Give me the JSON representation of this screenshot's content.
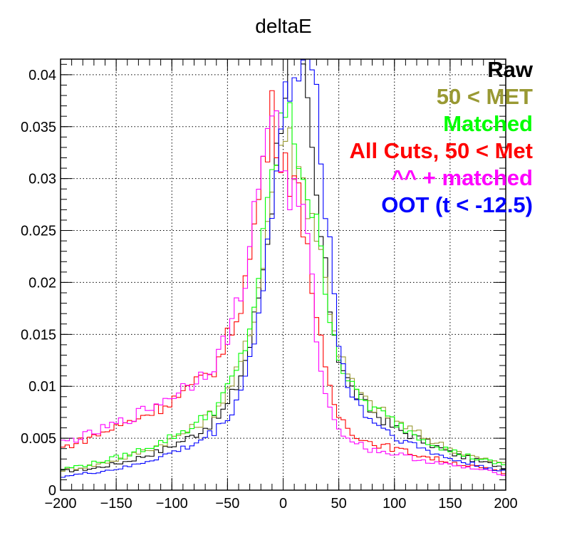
{
  "chart_data": {
    "type": "line",
    "title": "deltaE",
    "xlabel": "",
    "ylabel": "",
    "xlim": [
      -200,
      200
    ],
    "ylim": [
      0,
      0.0415
    ],
    "x_ticks": [
      -200,
      -150,
      -100,
      -50,
      0,
      50,
      100,
      150,
      200
    ],
    "x_tick_labels": [
      "−200",
      "−150",
      "−100",
      "−50",
      "0",
      "50",
      "100",
      "150",
      "200"
    ],
    "y_ticks": [
      0,
      0.005,
      0.01,
      0.015,
      0.02,
      0.025,
      0.03,
      0.035,
      0.04
    ],
    "y_tick_labels": [
      "0",
      "0.005",
      "0.01",
      "0.015",
      "0.02",
      "0.025",
      "0.03",
      "0.035",
      "0.04"
    ],
    "grid": true,
    "legend_position": "top-right",
    "bin_width": 4,
    "series": [
      {
        "name": "Raw",
        "color": "#000000",
        "points": [
          [
            -200,
            0.0018
          ],
          [
            -170,
            0.0021
          ],
          [
            -140,
            0.0028
          ],
          [
            -110,
            0.0038
          ],
          [
            -80,
            0.0053
          ],
          [
            -60,
            0.0068
          ],
          [
            -50,
            0.0082
          ],
          [
            -40,
            0.0105
          ],
          [
            -30,
            0.014
          ],
          [
            -20,
            0.02
          ],
          [
            -10,
            0.028
          ],
          [
            0,
            0.039
          ],
          [
            10,
            0.0415
          ],
          [
            20,
            0.038
          ],
          [
            30,
            0.028
          ],
          [
            40,
            0.019
          ],
          [
            50,
            0.013
          ],
          [
            60,
            0.01
          ],
          [
            75,
            0.008
          ],
          [
            100,
            0.006
          ],
          [
            125,
            0.0048
          ],
          [
            150,
            0.0036
          ],
          [
            175,
            0.0028
          ],
          [
            200,
            0.0022
          ]
        ]
      },
      {
        "name": "50 < MET",
        "color": "#999933",
        "points": [
          [
            -200,
            0.0019
          ],
          [
            -170,
            0.0024
          ],
          [
            -140,
            0.0032
          ],
          [
            -110,
            0.0044
          ],
          [
            -80,
            0.006
          ],
          [
            -60,
            0.0078
          ],
          [
            -50,
            0.0095
          ],
          [
            -40,
            0.0115
          ],
          [
            -30,
            0.015
          ],
          [
            -20,
            0.021
          ],
          [
            -10,
            0.029
          ],
          [
            0,
            0.035
          ],
          [
            10,
            0.032
          ],
          [
            20,
            0.029
          ],
          [
            30,
            0.025
          ],
          [
            40,
            0.019
          ],
          [
            50,
            0.0135
          ],
          [
            60,
            0.0105
          ],
          [
            75,
            0.0085
          ],
          [
            100,
            0.0068
          ],
          [
            125,
            0.0052
          ],
          [
            150,
            0.004
          ],
          [
            175,
            0.0031
          ],
          [
            200,
            0.0025
          ]
        ]
      },
      {
        "name": "Matched",
        "color": "#00ff00",
        "points": [
          [
            -200,
            0.002
          ],
          [
            -170,
            0.0026
          ],
          [
            -140,
            0.0034
          ],
          [
            -110,
            0.0046
          ],
          [
            -80,
            0.0062
          ],
          [
            -60,
            0.008
          ],
          [
            -50,
            0.0097
          ],
          [
            -40,
            0.0118
          ],
          [
            -30,
            0.0155
          ],
          [
            -20,
            0.022
          ],
          [
            -10,
            0.03
          ],
          [
            0,
            0.0365
          ],
          [
            10,
            0.034
          ],
          [
            20,
            0.03
          ],
          [
            30,
            0.025
          ],
          [
            40,
            0.0185
          ],
          [
            50,
            0.013
          ],
          [
            60,
            0.01
          ],
          [
            75,
            0.0083
          ],
          [
            100,
            0.0066
          ],
          [
            125,
            0.005
          ],
          [
            150,
            0.0038
          ],
          [
            175,
            0.003
          ],
          [
            200,
            0.0024
          ]
        ]
      },
      {
        "name": "All Cuts, 50 < Met",
        "color": "#ff0000",
        "points": [
          [
            -200,
            0.004
          ],
          [
            -170,
            0.0052
          ],
          [
            -140,
            0.0065
          ],
          [
            -110,
            0.008
          ],
          [
            -80,
            0.01
          ],
          [
            -60,
            0.012
          ],
          [
            -50,
            0.0145
          ],
          [
            -40,
            0.0175
          ],
          [
            -30,
            0.022
          ],
          [
            -20,
            0.03
          ],
          [
            -10,
            0.036
          ],
          [
            0,
            0.0325
          ],
          [
            10,
            0.0295
          ],
          [
            20,
            0.0255
          ],
          [
            30,
            0.0165
          ],
          [
            40,
            0.01
          ],
          [
            50,
            0.0072
          ],
          [
            60,
            0.0058
          ],
          [
            75,
            0.0047
          ],
          [
            100,
            0.004
          ],
          [
            125,
            0.0033
          ],
          [
            150,
            0.0027
          ],
          [
            175,
            0.0022
          ],
          [
            200,
            0.0016
          ]
        ]
      },
      {
        "name": "^^ + matched",
        "color": "#ff00ff",
        "points": [
          [
            -200,
            0.0045
          ],
          [
            -170,
            0.0055
          ],
          [
            -140,
            0.0068
          ],
          [
            -110,
            0.0085
          ],
          [
            -80,
            0.0105
          ],
          [
            -60,
            0.0125
          ],
          [
            -50,
            0.015
          ],
          [
            -40,
            0.018
          ],
          [
            -30,
            0.023
          ],
          [
            -20,
            0.031
          ],
          [
            -10,
            0.038
          ],
          [
            0,
            0.03
          ],
          [
            10,
            0.028
          ],
          [
            20,
            0.026
          ],
          [
            30,
            0.015
          ],
          [
            40,
            0.008
          ],
          [
            50,
            0.006
          ],
          [
            60,
            0.005
          ],
          [
            75,
            0.004
          ],
          [
            100,
            0.0035
          ],
          [
            125,
            0.0029
          ],
          [
            150,
            0.0024
          ],
          [
            175,
            0.002
          ],
          [
            200,
            0.0015
          ]
        ]
      },
      {
        "name": "OOT (t < -12.5)",
        "color": "#0000ff",
        "points": [
          [
            -200,
            0.0013
          ],
          [
            -170,
            0.0017
          ],
          [
            -140,
            0.0022
          ],
          [
            -110,
            0.0032
          ],
          [
            -80,
            0.0044
          ],
          [
            -60,
            0.0058
          ],
          [
            -50,
            0.007
          ],
          [
            -40,
            0.009
          ],
          [
            -30,
            0.0125
          ],
          [
            -20,
            0.0185
          ],
          [
            -10,
            0.0265
          ],
          [
            0,
            0.036
          ],
          [
            10,
            0.0415
          ],
          [
            20,
            0.0415
          ],
          [
            30,
            0.037
          ],
          [
            40,
            0.026
          ],
          [
            50,
            0.014
          ],
          [
            60,
            0.0095
          ],
          [
            75,
            0.0072
          ],
          [
            100,
            0.0052
          ],
          [
            125,
            0.004
          ],
          [
            150,
            0.003
          ],
          [
            175,
            0.0024
          ],
          [
            200,
            0.0018
          ]
        ]
      }
    ]
  }
}
